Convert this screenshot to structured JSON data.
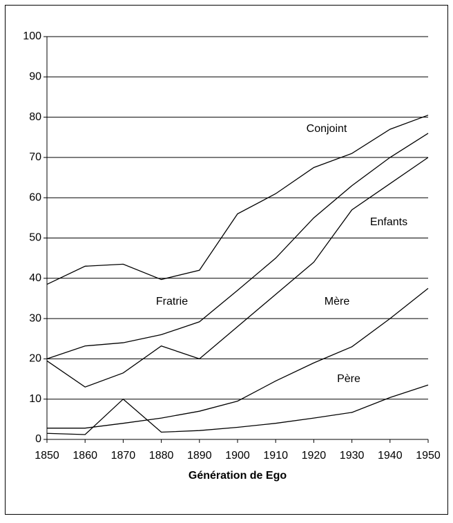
{
  "chart_data": {
    "type": "line",
    "x_label": "Génération de Ego",
    "x": [
      1850,
      1860,
      1870,
      1880,
      1890,
      1900,
      1910,
      1920,
      1930,
      1940,
      1950
    ],
    "xlim": [
      1850,
      1950
    ],
    "xticks": [
      1850,
      1860,
      1870,
      1880,
      1890,
      1900,
      1910,
      1920,
      1930,
      1940,
      1950
    ],
    "ylim": [
      0,
      100
    ],
    "yticks": [
      0,
      10,
      20,
      30,
      40,
      50,
      60,
      70,
      80,
      90,
      100
    ],
    "grid": true,
    "series": [
      {
        "name": "Conjoint",
        "color": "#000000",
        "values": [
          38.5,
          43,
          43.5,
          39.7,
          42,
          56,
          61,
          67.5,
          71,
          77,
          80.5
        ]
      },
      {
        "name": "Fratrie",
        "color": "#000000",
        "values": [
          20,
          23.2,
          24,
          26,
          29.2,
          37,
          45,
          55,
          63,
          70,
          76
        ]
      },
      {
        "name": "Enfants",
        "color": "#000000",
        "values": [
          19.5,
          13,
          16.5,
          23.2,
          20,
          28,
          36,
          44,
          57,
          63.5,
          70
        ]
      },
      {
        "name": "Mère",
        "color": "#000000",
        "values": [
          2.8,
          2.8,
          4,
          5.3,
          7,
          9.5,
          14.5,
          19,
          23,
          30,
          37.5
        ]
      },
      {
        "name": "Père",
        "color": "#000000",
        "values": [
          1.5,
          1.2,
          10,
          1.8,
          2.2,
          3,
          4,
          5.3,
          6.7,
          10.4,
          13.5
        ]
      }
    ]
  }
}
